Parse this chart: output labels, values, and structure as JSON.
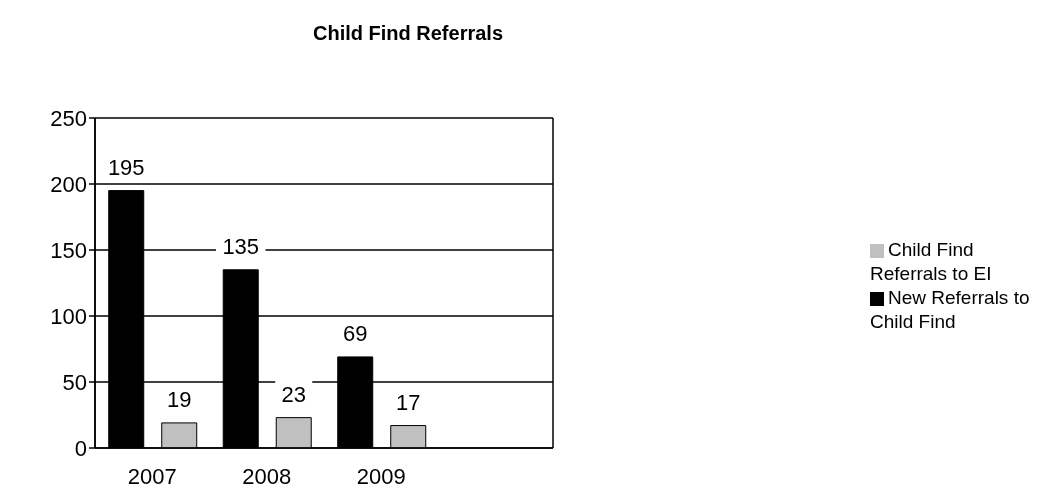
{
  "chart_data": {
    "type": "bar",
    "title": "Child Find Referrals",
    "categories": [
      "2007",
      "2008",
      "2009",
      null
    ],
    "series": [
      {
        "name": "New Referrals to Child Find",
        "color": "#000000",
        "values": [
          195,
          135,
          69,
          null
        ]
      },
      {
        "name": "Child Find Referrals to EI",
        "color": "#c0c0c0",
        "values": [
          19,
          23,
          17,
          null
        ]
      }
    ],
    "ylim": [
      0,
      250
    ],
    "yticks": [
      0,
      50,
      100,
      150,
      200,
      250
    ],
    "grid": "y",
    "legend": "right",
    "data_labels": true
  }
}
